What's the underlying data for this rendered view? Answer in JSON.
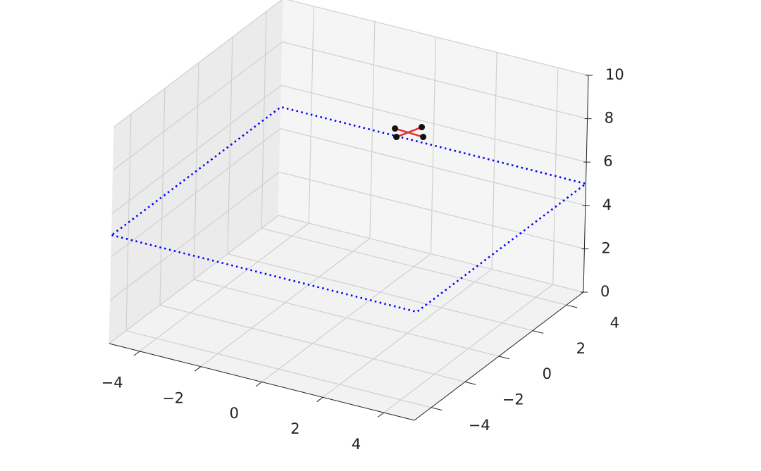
{
  "chart_data": {
    "type": "line3d",
    "xlim": [
      -5,
      5
    ],
    "ylim": [
      -5,
      5
    ],
    "zlim": [
      0,
      10
    ],
    "xticks": [
      {
        "value": -4,
        "label": "−4"
      },
      {
        "value": -2,
        "label": "−2"
      },
      0,
      2,
      4
    ],
    "yticks": [
      {
        "value": -4,
        "label": "−4"
      },
      {
        "value": -2,
        "label": "−2"
      },
      0,
      2,
      4
    ],
    "zticks": [
      0,
      2,
      4,
      6,
      8,
      10
    ],
    "grid": true,
    "series": [
      {
        "color": "#0000ff",
        "x": [
          -5,
          5,
          5,
          -5,
          -5
        ],
        "y": [
          -5,
          -5,
          5,
          5,
          -5
        ],
        "z": [
          5,
          5,
          5,
          5,
          5
        ]
      }
    ],
    "drone": {
      "x": -0.8,
      "y": 5,
      "z": 5.3,
      "color": "#e83030"
    }
  }
}
